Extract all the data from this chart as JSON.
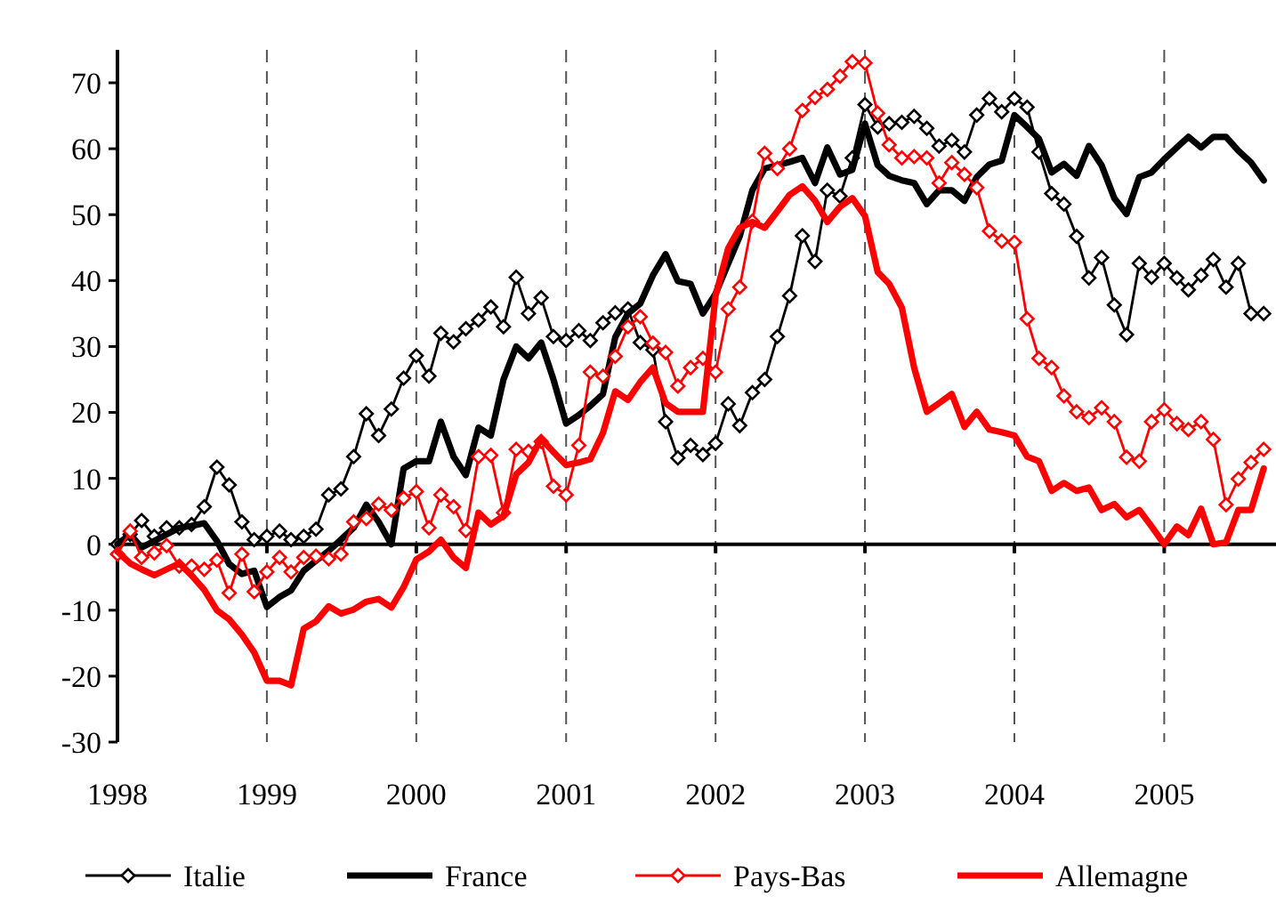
{
  "chart_data": {
    "type": "line",
    "x": [
      "1998-01",
      "1998-02",
      "1998-03",
      "1998-04",
      "1998-05",
      "1998-06",
      "1998-07",
      "1998-08",
      "1998-09",
      "1998-10",
      "1998-11",
      "1998-12",
      "1999-01",
      "1999-02",
      "1999-03",
      "1999-04",
      "1999-05",
      "1999-06",
      "1999-07",
      "1999-08",
      "1999-09",
      "1999-10",
      "1999-11",
      "1999-12",
      "2000-01",
      "2000-02",
      "2000-03",
      "2000-04",
      "2000-05",
      "2000-06",
      "2000-07",
      "2000-08",
      "2000-09",
      "2000-10",
      "2000-11",
      "2000-12",
      "2001-01",
      "2001-02",
      "2001-03",
      "2001-04",
      "2001-05",
      "2001-06",
      "2001-07",
      "2001-08",
      "2001-09",
      "2001-10",
      "2001-11",
      "2001-12",
      "2002-01",
      "2002-02",
      "2002-03",
      "2002-04",
      "2002-05",
      "2002-06",
      "2002-07",
      "2002-08",
      "2002-09",
      "2002-10",
      "2002-11",
      "2002-12",
      "2003-01",
      "2003-02",
      "2003-03",
      "2003-04",
      "2003-05",
      "2003-06",
      "2003-07",
      "2003-08",
      "2003-09",
      "2003-10",
      "2003-11",
      "2003-12",
      "2004-01",
      "2004-02",
      "2004-03",
      "2004-04",
      "2004-05",
      "2004-06",
      "2004-07",
      "2004-08",
      "2004-09",
      "2004-10",
      "2004-11",
      "2004-12",
      "2005-01",
      "2005-02",
      "2005-03",
      "2005-04",
      "2005-05",
      "2005-06",
      "2005-07",
      "2005-08",
      "2005-09"
    ],
    "series": [
      {
        "name": "Italie",
        "color": "#000000",
        "marker": "diamond",
        "values": [
          0,
          1.5,
          3.6,
          1.2,
          2.5,
          2.5,
          3,
          5.7,
          11.7,
          9,
          3.4,
          0.7,
          1.2,
          2,
          0.7,
          1.2,
          2.3,
          7.5,
          8.4,
          13.3,
          19.8,
          16.5,
          20.5,
          25.2,
          28.6,
          25.5,
          32,
          30.7,
          32.7,
          34,
          36,
          33,
          40.5,
          35,
          37.4,
          31.5,
          30.9,
          32.4,
          30.9,
          33.6,
          35.1,
          35.7,
          30.6,
          29.5,
          18.6,
          13.1,
          15,
          13.6,
          15.3,
          21.3,
          18,
          23,
          25,
          31.5,
          37.7,
          46.8,
          42.9,
          53.7,
          52.8,
          58.6,
          66.7,
          63.3,
          63.8,
          64,
          64.9,
          63.1,
          60.4,
          61.3,
          59.5,
          65.1,
          67.6,
          65.6,
          67.6,
          66.3,
          59.5,
          53.2,
          51.6,
          46.7,
          40.4,
          43.5,
          36.3,
          31.8,
          42.6,
          40.5,
          42.6,
          40.4,
          38.6,
          40.8,
          43.2,
          39,
          42.6,
          35,
          35
        ]
      },
      {
        "name": "France",
        "color": "#000000",
        "marker": "none",
        "values": [
          0,
          1.5,
          -0.5,
          0.5,
          1.5,
          2.5,
          2.8,
          3.2,
          0.5,
          -3,
          -4.5,
          -4,
          -9.5,
          -8,
          -7,
          -4,
          -2.5,
          -1,
          0.7,
          2.5,
          6,
          3.4,
          0,
          11.5,
          12.6,
          12.6,
          18.6,
          13.3,
          10.5,
          17.7,
          16.5,
          25,
          30,
          28.2,
          30.6,
          25,
          18.3,
          19.6,
          21,
          22.8,
          31.4,
          35,
          36.5,
          40.8,
          44,
          39.9,
          39.5,
          35,
          38,
          42.6,
          46.7,
          53.7,
          57,
          57.5,
          58,
          58.6,
          54.8,
          60.2,
          56.1,
          56.8,
          63.8,
          57.5,
          55.9,
          55.2,
          54.8,
          51.6,
          53.7,
          53.7,
          52.1,
          55.7,
          57.6,
          58.2,
          65.1,
          63.3,
          61.5,
          56.4,
          57.7,
          55.9,
          60.4,
          57.5,
          52.5,
          50.1,
          55.7,
          56.4,
          58.4,
          60.2,
          61.8,
          60.2,
          61.8,
          61.8,
          59.7,
          57.9,
          55.2
        ]
      },
      {
        "name": "Pays-Bas",
        "color": "#ff0000",
        "marker": "diamond",
        "values": [
          -1.5,
          2,
          -2,
          -1.3,
          -0.2,
          -3.3,
          -3.3,
          -3.8,
          -2.4,
          -7.4,
          -1.5,
          -7.2,
          -4.2,
          -2,
          -4.2,
          -2,
          -1.8,
          -2.2,
          -1.5,
          3.4,
          3.9,
          6.1,
          5.2,
          7,
          8,
          2.5,
          7.5,
          5.7,
          2.1,
          13.3,
          13.5,
          4.8,
          14.4,
          14.1,
          15.6,
          8.8,
          7.5,
          15,
          26.1,
          25.5,
          28.5,
          33,
          34.5,
          30.5,
          29.1,
          24,
          26.8,
          28.2,
          26.1,
          35.7,
          39,
          49,
          59.3,
          57,
          60,
          65.8,
          67.8,
          69,
          71,
          73.2,
          73,
          65.4,
          60.6,
          58.6,
          58.8,
          58.6,
          54.8,
          57.9,
          56.1,
          54.1,
          47.5,
          46,
          45.8,
          34.2,
          28.2,
          26.8,
          22.5,
          20.1,
          19.2,
          20.7,
          18.6,
          13.2,
          12.6,
          18.6,
          20.4,
          18.3,
          17.4,
          18.6,
          15.9,
          6,
          9.9,
          12.4,
          14.4
        ]
      },
      {
        "name": "Allemagne",
        "color": "#ff0000",
        "marker": "none",
        "values": [
          -1.1,
          -2.9,
          -3.8,
          -4.7,
          -3.8,
          -2.9,
          -4.7,
          -6.9,
          -10,
          -11.4,
          -13.7,
          -16.4,
          -20.7,
          -20.7,
          -21.4,
          -12.8,
          -11.7,
          -9.4,
          -10.5,
          -9.9,
          -8.7,
          -8.3,
          -9.6,
          -6.5,
          -2.3,
          -1.1,
          0.7,
          -2,
          -3.6,
          4.8,
          3,
          4.3,
          10.6,
          12.4,
          16,
          14,
          12,
          12.4,
          12.9,
          16.9,
          23.2,
          21.9,
          24.6,
          26.8,
          21.4,
          20.1,
          20.1,
          20.1,
          37.7,
          44.9,
          48,
          48.9,
          48,
          50.5,
          53,
          54.3,
          52.1,
          48.9,
          51.2,
          52.5,
          49.8,
          41.3,
          39.5,
          35.9,
          26.8,
          20.1,
          21.4,
          22.8,
          17.8,
          20.1,
          17.4,
          17,
          16.5,
          13.3,
          12.6,
          8.1,
          9.3,
          8.1,
          8.6,
          5.2,
          6.1,
          4.1,
          5.2,
          2.7,
          0,
          2.7,
          1.4,
          5.4,
          0,
          0.3,
          5.2,
          5.2,
          11.5
        ]
      }
    ],
    "xlim": [
      "1998-01",
      "2005-10"
    ],
    "xticks": [
      {
        "value": "1998",
        "label": "1998"
      },
      {
        "value": "1999",
        "label": "1999"
      },
      {
        "value": "2000",
        "label": "2000"
      },
      {
        "value": "2001",
        "label": "2001"
      },
      {
        "value": "2002",
        "label": "2002"
      },
      {
        "value": "2003",
        "label": "2003"
      },
      {
        "value": "2004",
        "label": "2004"
      },
      {
        "value": "2005",
        "label": "2005"
      }
    ],
    "ylim": [
      -30,
      75
    ],
    "yticks": [
      -30,
      -20,
      -10,
      0,
      10,
      20,
      30,
      40,
      50,
      60,
      70
    ],
    "grid": "x",
    "legend": "bottom"
  }
}
